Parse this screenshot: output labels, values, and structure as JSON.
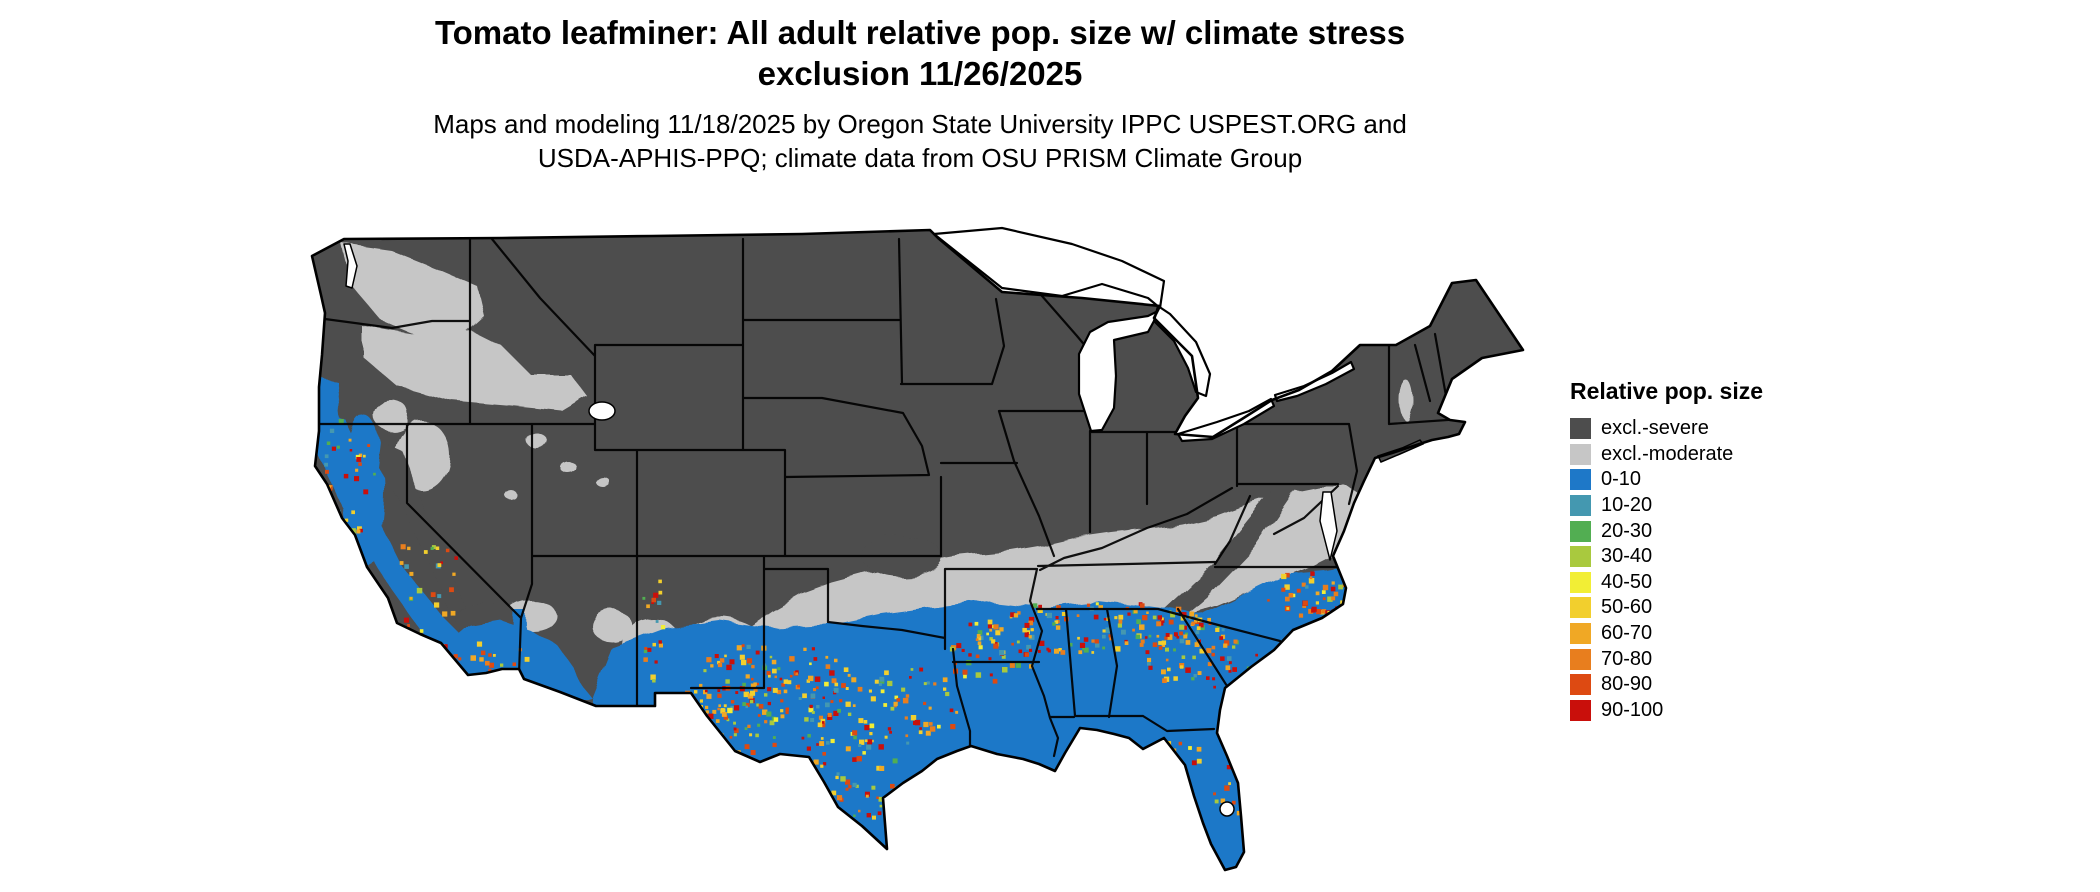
{
  "title": {
    "line1": "Tomato leafminer: All adult relative pop. size w/ climate stress",
    "line2": "exclusion 11/26/2025"
  },
  "subtitle": {
    "line1": "Maps and modeling 11/18/2025 by Oregon State University IPPC USPEST.ORG and",
    "line2": "USDA-APHIS-PPQ; climate data from OSU PRISM Climate Group"
  },
  "legend": {
    "title": "Relative pop. size",
    "items": [
      {
        "label": "excl.-severe",
        "color": "#4d4d4d"
      },
      {
        "label": "excl.-moderate",
        "color": "#c6c6c6"
      },
      {
        "label": "0-10",
        "color": "#1e78c8"
      },
      {
        "label": "10-20",
        "color": "#4498b0"
      },
      {
        "label": "20-30",
        "color": "#52ae52"
      },
      {
        "label": "30-40",
        "color": "#a9c93e"
      },
      {
        "label": "40-50",
        "color": "#f2ee35"
      },
      {
        "label": "50-60",
        "color": "#f2cf2d"
      },
      {
        "label": "60-70",
        "color": "#f0a825"
      },
      {
        "label": "70-80",
        "color": "#e87e1e"
      },
      {
        "label": "80-90",
        "color": "#dd4a12"
      },
      {
        "label": "90-100",
        "color": "#c90f0b"
      }
    ]
  },
  "colors": {
    "background": "#ffffff",
    "map_border": "#000000",
    "water": "#ffffff",
    "excl_severe": "#4d4d4d",
    "excl_moderate": "#c6c6c6",
    "b0_10": "#1e78c8",
    "b10_20": "#4498b0",
    "b20_30": "#52ae52",
    "b30_40": "#a9c93e",
    "b40_50": "#f2ee35",
    "b50_60": "#f2cf2d",
    "b60_70": "#f0a825",
    "b70_80": "#e87e1e",
    "b80_90": "#dd4a12",
    "b90_100": "#c90f0b"
  }
}
